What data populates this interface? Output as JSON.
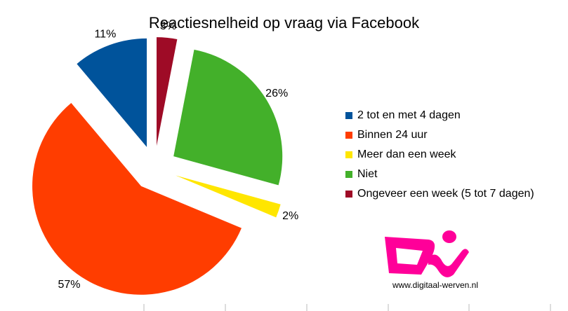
{
  "chart_data": {
    "type": "pie",
    "title": "Reactiesnelheid op vraag via Facebook",
    "slices": [
      {
        "label": "2 tot en met 4 dagen",
        "value": 11,
        "value_label": "11%",
        "color": "#00539b"
      },
      {
        "label": "Binnen 24 uur",
        "value": 57,
        "value_label": "57%",
        "color": "#ff3d00"
      },
      {
        "label": "Meer dan een week",
        "value": 2,
        "value_label": "2%",
        "color": "#ffe600"
      },
      {
        "label": "Niet",
        "value": 26,
        "value_label": "26%",
        "color": "#43b02a"
      },
      {
        "label": "Ongeveer een week (5 tot 7 dagen)",
        "value": 3,
        "value_label": "3%",
        "color": "#9e0b26"
      }
    ],
    "exploded": true,
    "legend_position": "right"
  },
  "logo": {
    "url_text": "www.digitaal-werven.nl",
    "color": "#ff0099"
  }
}
